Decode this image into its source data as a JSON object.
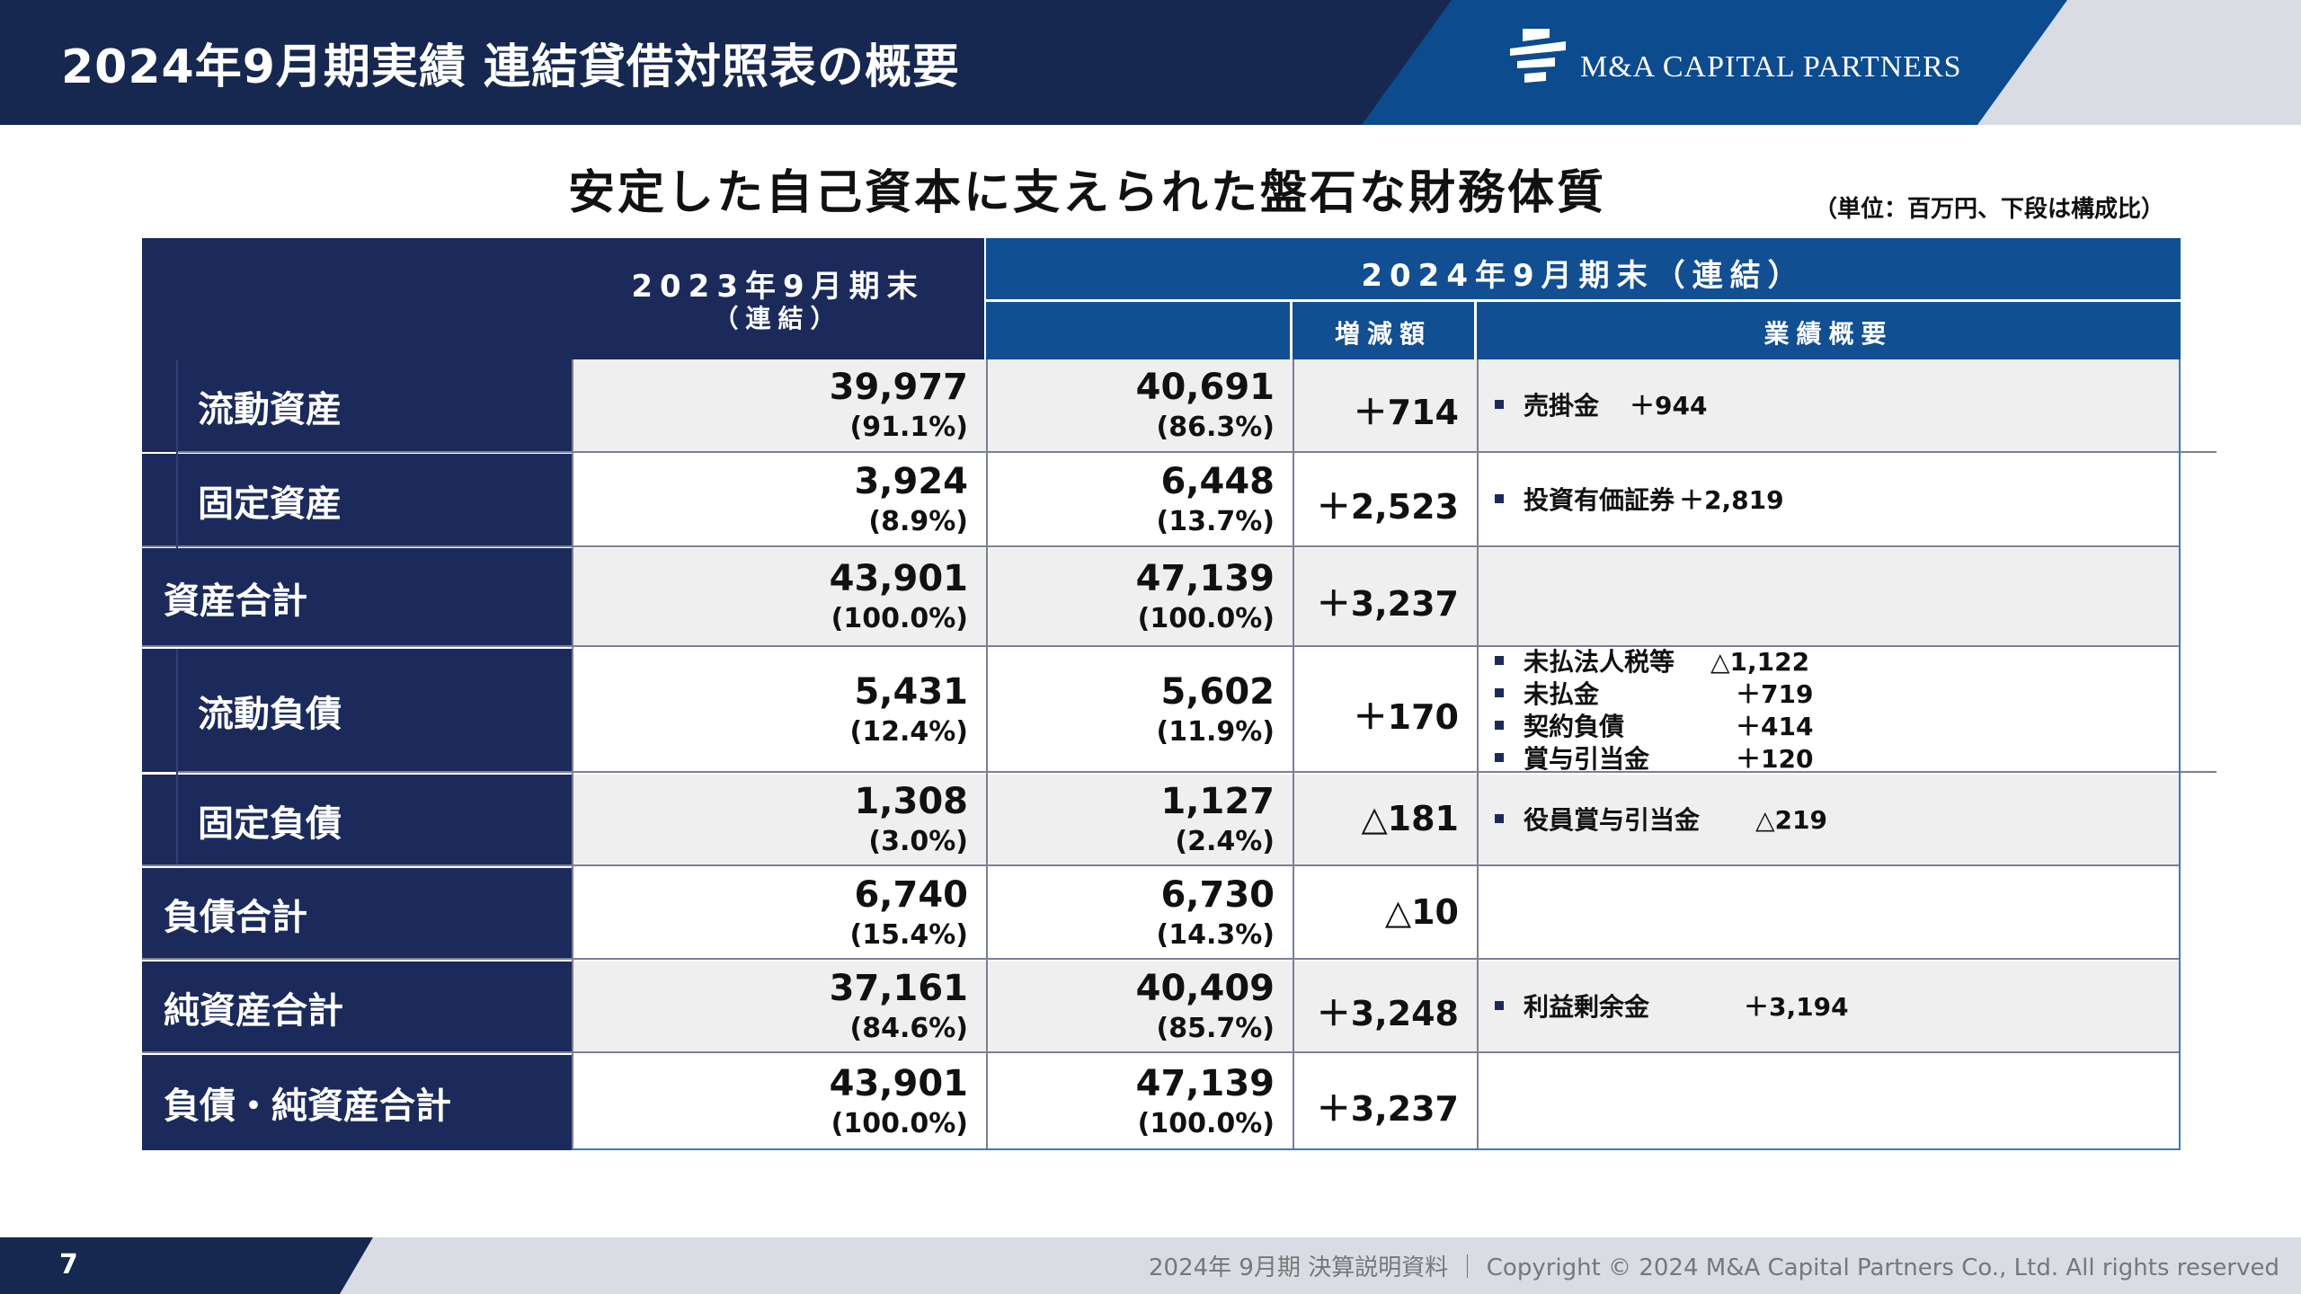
{
  "header": {
    "title": "2024年9月期実績 連結貸借対照表の概要",
    "brand": "M&A CAPITAL PARTNERS",
    "colors": {
      "navy": "#16284f",
      "blue": "#0d4b8f"
    }
  },
  "subtitle": "安定した自己資本に支えられた盤石な財務体質",
  "unit_note": "（単位：百万円、下段は構成比）",
  "table": {
    "col_2023": "2023年9月期末",
    "col_2023_sub": "（連結）",
    "col_2024": "2024年9月期末（連結）",
    "col_diff": "増減額",
    "col_summary": "業績概要",
    "rows": [
      {
        "label": "流動資産",
        "v2023": "39,977",
        "p2023": "(91.1%)",
        "v2024": "40,691",
        "p2024": "(86.3%)",
        "diff": "＋714",
        "notes": [
          {
            "name": "売掛金",
            "value": "＋944"
          }
        ]
      },
      {
        "label": "固定資産",
        "v2023": "3,924",
        "p2023": "(8.9%)",
        "v2024": "6,448",
        "p2024": "(13.7%)",
        "diff": "＋2,523",
        "notes": [
          {
            "name": "投資有価証券",
            "value": "＋2,819"
          }
        ]
      },
      {
        "label": "資産合計",
        "v2023": "43,901",
        "p2023": "(100.0%)",
        "v2024": "47,139",
        "p2024": "(100.0%)",
        "diff": "＋3,237",
        "notes": []
      },
      {
        "label": "流動負債",
        "v2023": "5,431",
        "p2023": "(12.4%)",
        "v2024": "5,602",
        "p2024": "(11.9%)",
        "diff": "＋170",
        "notes": [
          {
            "name": "未払法人税等",
            "value": "△1,122"
          },
          {
            "name": "未払金",
            "value": "＋719"
          },
          {
            "name": "契約負債",
            "value": "＋414"
          },
          {
            "name": "賞与引当金",
            "value": "＋120"
          }
        ]
      },
      {
        "label": "固定負債",
        "v2023": "1,308",
        "p2023": "(3.0%)",
        "v2024": "1,127",
        "p2024": "(2.4%)",
        "diff": "△181",
        "notes": [
          {
            "name": "役員賞与引当金",
            "value": "△219"
          }
        ]
      },
      {
        "label": "負債合計",
        "v2023": "6,740",
        "p2023": "(15.4%)",
        "v2024": "6,730",
        "p2024": "(14.3%)",
        "diff": "△10",
        "notes": []
      },
      {
        "label": "純資産合計",
        "v2023": "37,161",
        "p2023": "(84.6%)",
        "v2024": "40,409",
        "p2024": "(85.7%)",
        "diff": "＋3,248",
        "notes": [
          {
            "name": "利益剰余金",
            "value": "＋3,194"
          }
        ]
      },
      {
        "label": "負債・純資産合計",
        "v2023": "43,901",
        "p2023": "(100.0%)",
        "v2024": "47,139",
        "p2024": "(100.0%)",
        "diff": "＋3,237",
        "notes": []
      }
    ]
  },
  "footer": {
    "page": "7",
    "copyright": "2024年 9月期 決算説明資料 ｜ Copyright © 2024 M&A Capital Partners Co., Ltd. All rights reserved"
  }
}
